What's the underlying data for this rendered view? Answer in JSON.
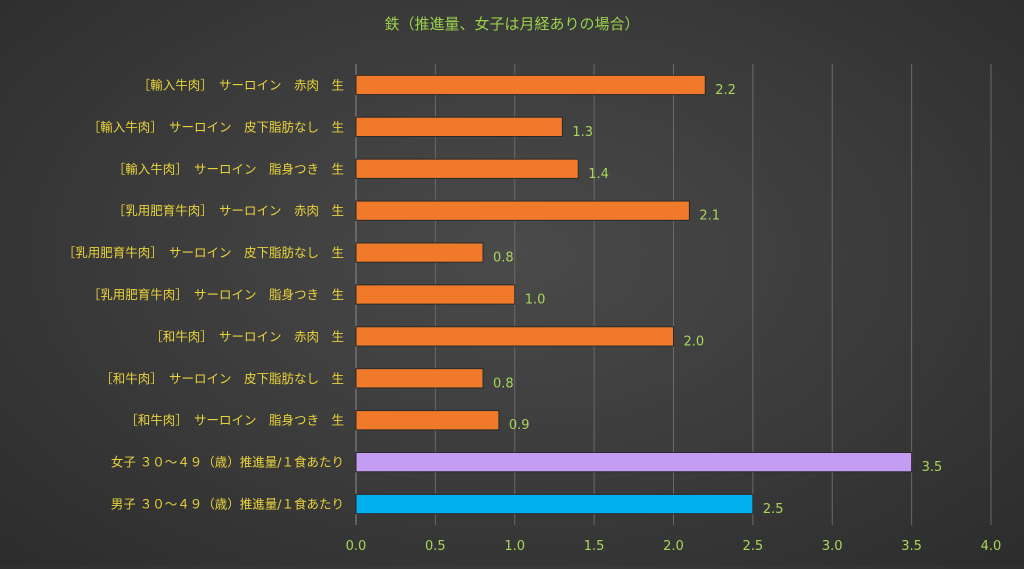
{
  "chart_data": {
    "type": "bar",
    "orientation": "horizontal",
    "title": "鉄（推進量、女子は月経ありの場合）",
    "xlim": [
      0,
      4
    ],
    "x_ticks": [
      "0.0",
      "0.5",
      "1.0",
      "1.5",
      "2.0",
      "2.5",
      "3.0",
      "3.5",
      "4.0"
    ],
    "grid": true,
    "categories": [
      "［輸入牛肉］　サーロイン　赤肉　生",
      "［輸入牛肉］　サーロイン　皮下脂肪なし　生",
      "［輸入牛肉］　サーロイン　脂身つき　生",
      "［乳用肥育牛肉］　サーロイン　赤肉　生",
      "［乳用肥育牛肉］　サーロイン　皮下脂肪なし　生",
      "［乳用肥育牛肉］　サーロイン　脂身つき　生",
      "［和牛肉］　サーロイン　赤肉　生",
      "［和牛肉］　サーロイン　皮下脂肪なし　生",
      "［和牛肉］　サーロイン　脂身つき　生",
      "女子 ３０～４９（歳）推進量/１食あたり",
      "男子 ３０～４９（歳）推進量/１食あたり"
    ],
    "values": [
      2.2,
      1.3,
      1.4,
      2.1,
      0.8,
      1.0,
      2.0,
      0.8,
      0.9,
      3.5,
      2.5
    ],
    "value_labels": [
      "2.2",
      "1.3",
      "1.4",
      "2.1",
      "0.8",
      "1.0",
      "2.0",
      "0.8",
      "0.9",
      "3.5",
      "2.5"
    ],
    "colors": [
      "#f07a2a",
      "#f07a2a",
      "#f07a2a",
      "#f07a2a",
      "#f07a2a",
      "#f07a2a",
      "#f07a2a",
      "#f07a2a",
      "#f07a2a",
      "#c49cf2",
      "#00b0f0"
    ],
    "bar_border_color": "#2a2a2a",
    "background_color": "#3a3a3a",
    "title_color": "#9ad14b",
    "category_label_color": "#e8d33b",
    "value_label_color": "#a8d65a"
  }
}
